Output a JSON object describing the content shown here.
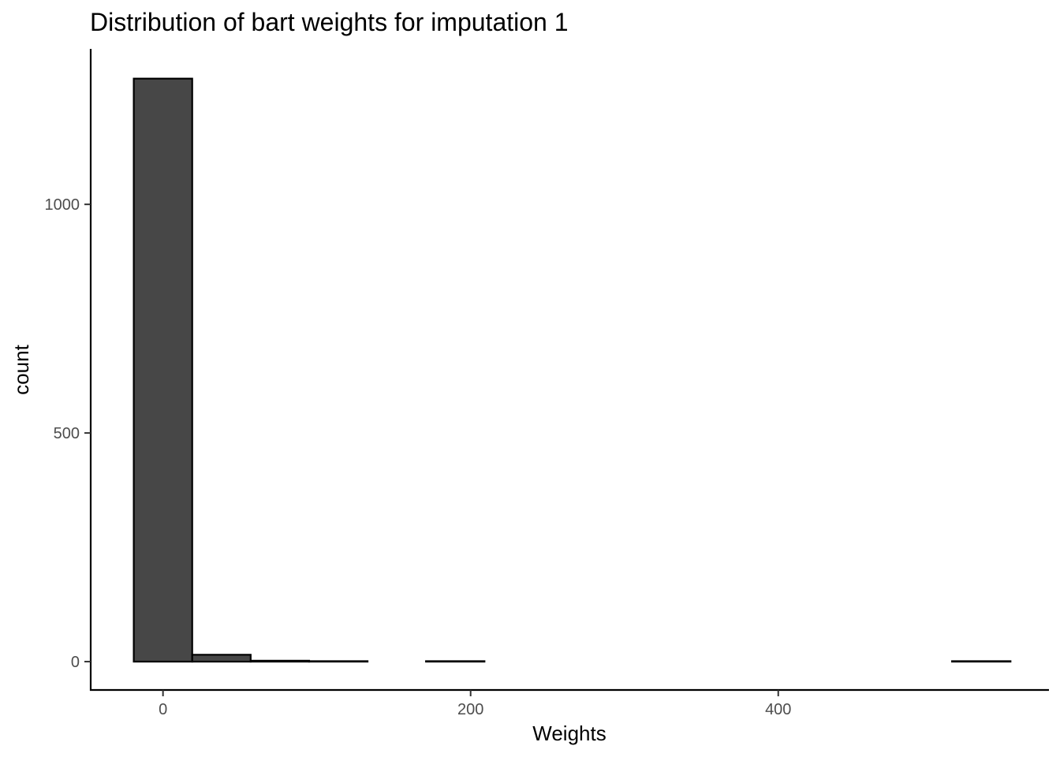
{
  "chart_data": {
    "type": "bar",
    "subtype": "histogram",
    "title": "Distribution of bart weights for imputation 1",
    "xlabel": "Weights",
    "ylabel": "count",
    "xlim": [
      -47,
      576
    ],
    "ylim": [
      -62,
      1340
    ],
    "x_ticks": [
      0,
      200,
      400
    ],
    "x_tick_labels": [
      "0",
      "200",
      "400"
    ],
    "y_ticks": [
      0,
      500,
      1000
    ],
    "y_tick_labels": [
      "0",
      "500",
      "1000"
    ],
    "bin_width": 38,
    "bins": [
      {
        "x0": -19,
        "x1": 19,
        "count": 1275
      },
      {
        "x0": 19,
        "x1": 57,
        "count": 15
      },
      {
        "x0": 57,
        "x1": 95,
        "count": 2
      },
      {
        "x0": 95,
        "x1": 133,
        "count": 1
      },
      {
        "x0": 133,
        "x1": 171,
        "count": 0
      },
      {
        "x0": 171,
        "x1": 209,
        "count": 1
      },
      {
        "x0": 209,
        "x1": 247,
        "count": 0
      },
      {
        "x0": 247,
        "x1": 285,
        "count": 0
      },
      {
        "x0": 285,
        "x1": 323,
        "count": 0
      },
      {
        "x0": 323,
        "x1": 361,
        "count": 0
      },
      {
        "x0": 361,
        "x1": 399,
        "count": 0
      },
      {
        "x0": 399,
        "x1": 437,
        "count": 0
      },
      {
        "x0": 437,
        "x1": 475,
        "count": 0
      },
      {
        "x0": 475,
        "x1": 513,
        "count": 0
      },
      {
        "x0": 513,
        "x1": 551,
        "count": 1
      }
    ],
    "bar_fill": "#474747",
    "bar_stroke": "#000000",
    "grid": false,
    "legend": "none"
  }
}
